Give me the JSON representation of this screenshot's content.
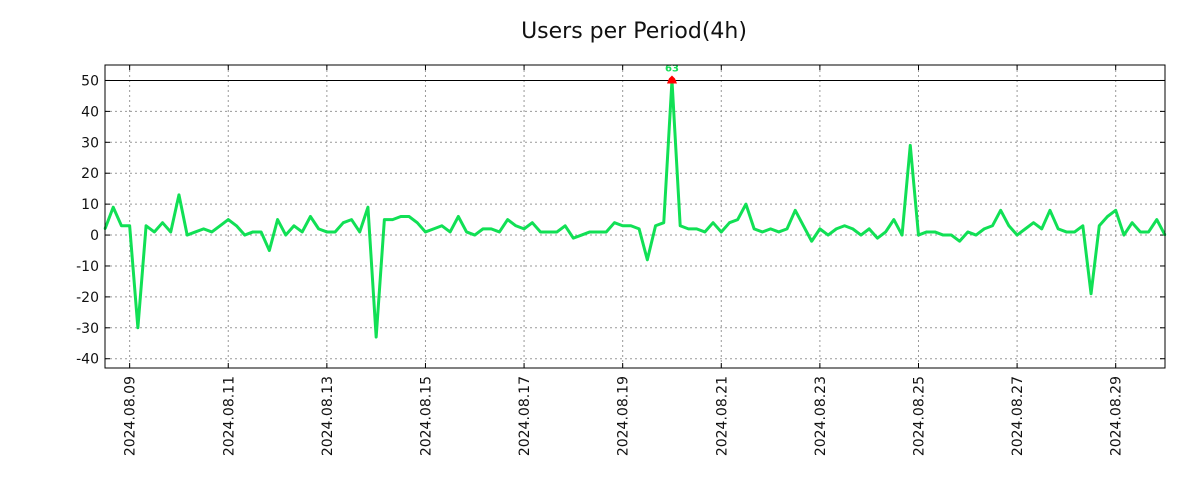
{
  "chart_data": {
    "type": "line",
    "title": "Users per Period(4h)",
    "xlabel": "",
    "ylabel": "",
    "x_unit": "hours since 2024.08.09 00:00",
    "x_start": -12,
    "x_step": 4,
    "xlim": [
      -12,
      504
    ],
    "ylim": [
      -43,
      55
    ],
    "yticks": [
      50,
      40,
      30,
      20,
      10,
      0,
      -10,
      -20,
      -30,
      -40
    ],
    "xticks": [
      {
        "x": 0,
        "label": "2024.08.09"
      },
      {
        "x": 48,
        "label": "2024.08.11"
      },
      {
        "x": 96,
        "label": "2024.08.13"
      },
      {
        "x": 144,
        "label": "2024.08.15"
      },
      {
        "x": 192,
        "label": "2024.08.17"
      },
      {
        "x": 240,
        "label": "2024.08.19"
      },
      {
        "x": 288,
        "label": "2024.08.21"
      },
      {
        "x": 336,
        "label": "2024.08.23"
      },
      {
        "x": 384,
        "label": "2024.08.25"
      },
      {
        "x": 432,
        "label": "2024.08.27"
      },
      {
        "x": 480,
        "label": "2024.08.29"
      }
    ],
    "grid": true,
    "reference_line": 50,
    "series": [
      {
        "name": "Users",
        "color": "#11e055",
        "values": [
          2,
          9,
          3,
          3,
          -30,
          3,
          1,
          4,
          1,
          13,
          0,
          1,
          2,
          1,
          3,
          5,
          3,
          0,
          1,
          1,
          -5,
          5,
          0,
          3,
          1,
          6,
          2,
          1,
          1,
          4,
          5,
          1,
          9,
          -33,
          5,
          5,
          6,
          6,
          4,
          1,
          2,
          3,
          1,
          6,
          1,
          0,
          2,
          2,
          1,
          5,
          3,
          2,
          4,
          1,
          1,
          1,
          3,
          -1,
          0,
          1,
          1,
          1,
          4,
          3,
          3,
          2,
          -8,
          3,
          4,
          63,
          3,
          2,
          2,
          1,
          4,
          1,
          4,
          5,
          10,
          2,
          1,
          2,
          1,
          2,
          8,
          3,
          -2,
          2,
          0,
          2,
          3,
          2,
          0,
          2,
          -1,
          1,
          5,
          0,
          29,
          0,
          1,
          1,
          0,
          0,
          -2,
          1,
          0,
          2,
          3,
          8,
          3,
          0,
          2,
          4,
          2,
          8,
          2,
          1,
          1,
          3,
          -19,
          3,
          6,
          8,
          0,
          4,
          1,
          1,
          5,
          0
        ]
      }
    ],
    "annotations": [
      {
        "label": "63",
        "marker_color": "#ff0000",
        "label_color": "#11e055"
      }
    ]
  }
}
